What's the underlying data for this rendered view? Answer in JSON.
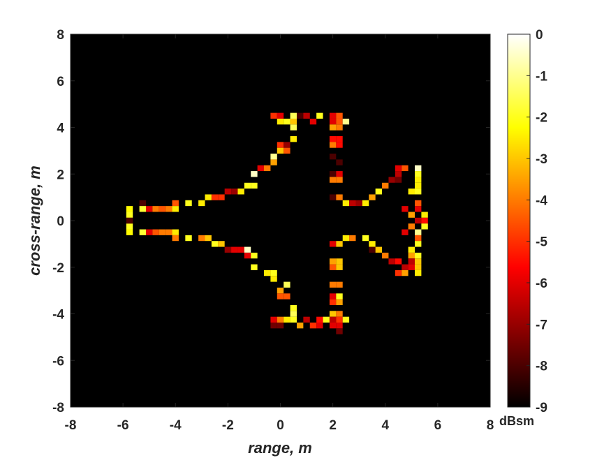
{
  "chart_data": {
    "type": "heatmap",
    "title": "",
    "xlabel": "range, m",
    "ylabel": "cross-range, m",
    "xlim": [
      -8,
      8
    ],
    "ylim": [
      -8,
      8
    ],
    "x_ticks": [
      "-8",
      "-6",
      "-4",
      "-2",
      "0",
      "2",
      "4",
      "6",
      "8"
    ],
    "y_ticks": [
      "8",
      "6",
      "4",
      "2",
      "0",
      "-2",
      "-4",
      "-6",
      "-8"
    ],
    "cell_size_m": 0.25,
    "background_value": -9,
    "colormap": "hot",
    "colorbar": {
      "unit": "dBsm",
      "range": [
        -9,
        0
      ],
      "ticks": [
        "0",
        "-1",
        "-2",
        "-3",
        "-4",
        "-5",
        "-6",
        "-7",
        "-8",
        "-9"
      ]
    },
    "cells": [
      [
        -5.75,
        0.5,
        -2.3
      ],
      [
        -5.75,
        0.25,
        -2.0
      ],
      [
        -5.75,
        -0.25,
        -2.0
      ],
      [
        -5.75,
        -0.5,
        -2.3
      ],
      [
        -5.75,
        0.0,
        -8.0
      ],
      [
        -5.25,
        0.75,
        -8.0
      ],
      [
        -5.25,
        0.5,
        -1.8
      ],
      [
        -5.25,
        -0.5,
        -1.8
      ],
      [
        -5.0,
        0.5,
        -6.0
      ],
      [
        -5.0,
        -0.5,
        -6.0
      ],
      [
        -4.75,
        0.5,
        -4.0
      ],
      [
        -4.75,
        -0.5,
        -4.5
      ],
      [
        -4.5,
        0.5,
        -4.5
      ],
      [
        -4.5,
        -0.5,
        -4.0
      ],
      [
        -4.25,
        0.5,
        -4.0
      ],
      [
        -4.25,
        -0.5,
        -4.0
      ],
      [
        -4.0,
        0.75,
        -4.5
      ],
      [
        -4.0,
        0.5,
        -2.5
      ],
      [
        -4.0,
        -0.5,
        -2.5
      ],
      [
        -4.0,
        -0.75,
        -4.0
      ],
      [
        -3.5,
        0.75,
        -2.0
      ],
      [
        -3.5,
        -0.75,
        -2.0
      ],
      [
        -3.0,
        0.75,
        -2.5
      ],
      [
        -3.0,
        -0.75,
        -4.0
      ],
      [
        -2.75,
        1.0,
        -2.5
      ],
      [
        -2.75,
        -0.75,
        -3.0
      ],
      [
        -2.5,
        1.0,
        -5.0
      ],
      [
        -2.5,
        -1.0,
        -2.0
      ],
      [
        -2.25,
        1.0,
        -5.0
      ],
      [
        -2.25,
        -1.0,
        -3.0
      ],
      [
        -2.0,
        1.25,
        -6.5
      ],
      [
        -2.0,
        -1.25,
        -7.0
      ],
      [
        -1.75,
        1.25,
        -7.0
      ],
      [
        -1.75,
        -1.25,
        -6.0
      ],
      [
        -1.5,
        1.25,
        -2.5
      ],
      [
        -1.5,
        -1.25,
        -6.0
      ],
      [
        -1.25,
        1.5,
        -2.0
      ],
      [
        -1.25,
        -1.25,
        -0.5
      ],
      [
        -1.25,
        -1.5,
        -6.0
      ],
      [
        -1.0,
        1.5,
        -2.0
      ],
      [
        -1.0,
        -1.5,
        -2.0
      ],
      [
        -1.0,
        2.0,
        -0.5
      ],
      [
        -1.0,
        -2.0,
        -2.0
      ],
      [
        -0.75,
        2.25,
        -6.0
      ],
      [
        -0.5,
        2.25,
        -4.0
      ],
      [
        -0.25,
        2.5,
        -3.5
      ],
      [
        -0.25,
        2.75,
        -1.0
      ],
      [
        -0.25,
        -2.25,
        -2.0
      ],
      [
        -0.25,
        -2.5,
        -2.5
      ],
      [
        -0.5,
        -2.25,
        -2.5
      ],
      [
        0.0,
        3.25,
        -5.0
      ],
      [
        0.0,
        3.0,
        -3.0
      ],
      [
        0.25,
        3.25,
        -7.0
      ],
      [
        0.25,
        3.0,
        -4.5
      ],
      [
        0.0,
        -3.0,
        -3.5
      ],
      [
        0.0,
        -3.25,
        -4.5
      ],
      [
        0.25,
        -3.25,
        -4.5
      ],
      [
        0.25,
        -2.75,
        -1.5
      ],
      [
        0.5,
        3.5,
        -2.5
      ],
      [
        0.5,
        -3.75,
        -2.0
      ],
      [
        -0.25,
        4.5,
        -5.0
      ],
      [
        0.0,
        4.5,
        -6.0
      ],
      [
        0.0,
        4.25,
        -2.5
      ],
      [
        0.25,
        4.25,
        -2.0
      ],
      [
        0.5,
        4.25,
        -3.0
      ],
      [
        0.5,
        4.5,
        -1.5
      ],
      [
        0.5,
        4.0,
        -1.5
      ],
      [
        0.75,
        4.5,
        -8.0
      ],
      [
        1.0,
        4.5,
        -6.5
      ],
      [
        1.25,
        4.25,
        -6.0
      ],
      [
        1.5,
        4.5,
        -2.0
      ],
      [
        -0.25,
        -4.25,
        -6.0
      ],
      [
        -0.25,
        -4.5,
        -7.5
      ],
      [
        0.0,
        -4.5,
        -7.5
      ],
      [
        0.0,
        -4.25,
        -4.0
      ],
      [
        0.25,
        -4.25,
        -2.5
      ],
      [
        0.5,
        -4.25,
        -2.0
      ],
      [
        0.5,
        -4.0,
        -1.5
      ],
      [
        0.75,
        -4.5,
        -3.5
      ],
      [
        1.0,
        -4.25,
        -6.5
      ],
      [
        1.25,
        -4.5,
        -5.0
      ],
      [
        1.5,
        -4.5,
        -6.0
      ],
      [
        1.5,
        -4.25,
        -5.5
      ],
      [
        1.75,
        -4.25,
        -2.0
      ],
      [
        2.0,
        4.5,
        -6.0
      ],
      [
        2.0,
        4.25,
        -6.0
      ],
      [
        2.0,
        4.0,
        -3.5
      ],
      [
        2.0,
        3.5,
        -5.5
      ],
      [
        2.0,
        3.25,
        -4.0
      ],
      [
        2.0,
        2.75,
        -8.0
      ],
      [
        2.0,
        2.0,
        -8.0
      ],
      [
        2.0,
        1.75,
        -4.0
      ],
      [
        2.0,
        1.0,
        -8.0
      ],
      [
        2.0,
        -1.0,
        -6.0
      ],
      [
        2.0,
        -1.75,
        -3.5
      ],
      [
        2.0,
        -2.0,
        -4.5
      ],
      [
        2.0,
        -2.75,
        -4.0
      ],
      [
        2.0,
        -3.25,
        -6.0
      ],
      [
        2.0,
        -3.5,
        -5.0
      ],
      [
        2.0,
        -4.0,
        -3.0
      ],
      [
        2.0,
        -4.25,
        -6.5
      ],
      [
        2.0,
        -4.5,
        -6.0
      ],
      [
        2.25,
        4.5,
        -4.5
      ],
      [
        2.25,
        4.25,
        -4.5
      ],
      [
        2.25,
        4.0,
        -4.0
      ],
      [
        2.25,
        3.5,
        -5.5
      ],
      [
        2.25,
        3.25,
        -5.5
      ],
      [
        2.25,
        2.5,
        -8.0
      ],
      [
        2.25,
        2.0,
        -6.0
      ],
      [
        2.25,
        1.75,
        -4.0
      ],
      [
        2.25,
        1.0,
        -4.0
      ],
      [
        2.25,
        -1.0,
        -3.0
      ],
      [
        2.25,
        -1.75,
        -3.0
      ],
      [
        2.25,
        -2.0,
        -3.0
      ],
      [
        2.25,
        -2.75,
        -4.0
      ],
      [
        2.25,
        -3.25,
        -2.0
      ],
      [
        2.25,
        -3.5,
        -3.5
      ],
      [
        2.25,
        -4.0,
        -4.0
      ],
      [
        2.25,
        -4.25,
        -5.0
      ],
      [
        2.25,
        -4.5,
        -6.0
      ],
      [
        2.25,
        -4.75,
        -7.5
      ],
      [
        2.5,
        4.25,
        -1.0
      ],
      [
        2.5,
        -4.25,
        -2.0
      ],
      [
        2.5,
        0.75,
        -2.5
      ],
      [
        2.75,
        0.75,
        -6.5
      ],
      [
        3.0,
        0.75,
        -7.0
      ],
      [
        3.25,
        0.75,
        -2.5
      ],
      [
        2.5,
        -0.75,
        -2.5
      ],
      [
        2.75,
        -0.75,
        -4.0
      ],
      [
        3.25,
        -0.75,
        -2.0
      ],
      [
        3.5,
        1.0,
        -3.5
      ],
      [
        3.75,
        1.25,
        -2.0
      ],
      [
        4.0,
        1.5,
        -4.0
      ],
      [
        4.25,
        1.75,
        -7.0
      ],
      [
        4.5,
        1.75,
        -7.5
      ],
      [
        4.5,
        2.25,
        -6.0
      ],
      [
        4.5,
        2.0,
        -6.5
      ],
      [
        4.75,
        2.25,
        -4.5
      ],
      [
        3.5,
        -1.0,
        -2.5
      ],
      [
        3.5,
        -1.25,
        -8.0
      ],
      [
        3.75,
        -1.25,
        -3.0
      ],
      [
        4.0,
        -1.5,
        -4.0
      ],
      [
        4.25,
        -1.75,
        -6.5
      ],
      [
        4.5,
        -1.75,
        -5.5
      ],
      [
        4.5,
        -2.25,
        -5.0
      ],
      [
        4.75,
        -2.25,
        -3.5
      ],
      [
        4.75,
        -2.0,
        -6.5
      ],
      [
        5.0,
        -1.5,
        -3.5
      ],
      [
        5.0,
        -1.75,
        -6.5
      ],
      [
        5.0,
        -2.0,
        -6.0
      ],
      [
        4.75,
        0.5,
        -6.0
      ],
      [
        5.0,
        0.25,
        -3.5
      ],
      [
        5.25,
        0.0,
        -6.5
      ],
      [
        5.0,
        -0.25,
        -4.0
      ],
      [
        4.75,
        -0.5,
        -6.0
      ],
      [
        5.0,
        1.25,
        -2.5
      ],
      [
        5.0,
        -1.25,
        -2.5
      ],
      [
        5.25,
        2.25,
        -0.5
      ],
      [
        5.25,
        2.0,
        -2.0
      ],
      [
        5.25,
        1.75,
        -2.5
      ],
      [
        5.25,
        1.5,
        -2.5
      ],
      [
        5.25,
        1.25,
        -2.0
      ],
      [
        5.25,
        0.75,
        -4.5
      ],
      [
        5.25,
        0.5,
        -6.0
      ],
      [
        5.25,
        -0.5,
        -1.0
      ],
      [
        5.25,
        -0.75,
        -4.5
      ],
      [
        5.25,
        -1.0,
        -2.0
      ],
      [
        5.25,
        -1.5,
        -2.0
      ],
      [
        5.25,
        -1.75,
        -3.0
      ],
      [
        5.25,
        -2.0,
        -3.0
      ],
      [
        5.25,
        -2.25,
        -2.5
      ],
      [
        5.5,
        0.25,
        -2.5
      ],
      [
        5.5,
        0.0,
        -5.5
      ],
      [
        5.5,
        -0.25,
        -2.0
      ]
    ]
  }
}
